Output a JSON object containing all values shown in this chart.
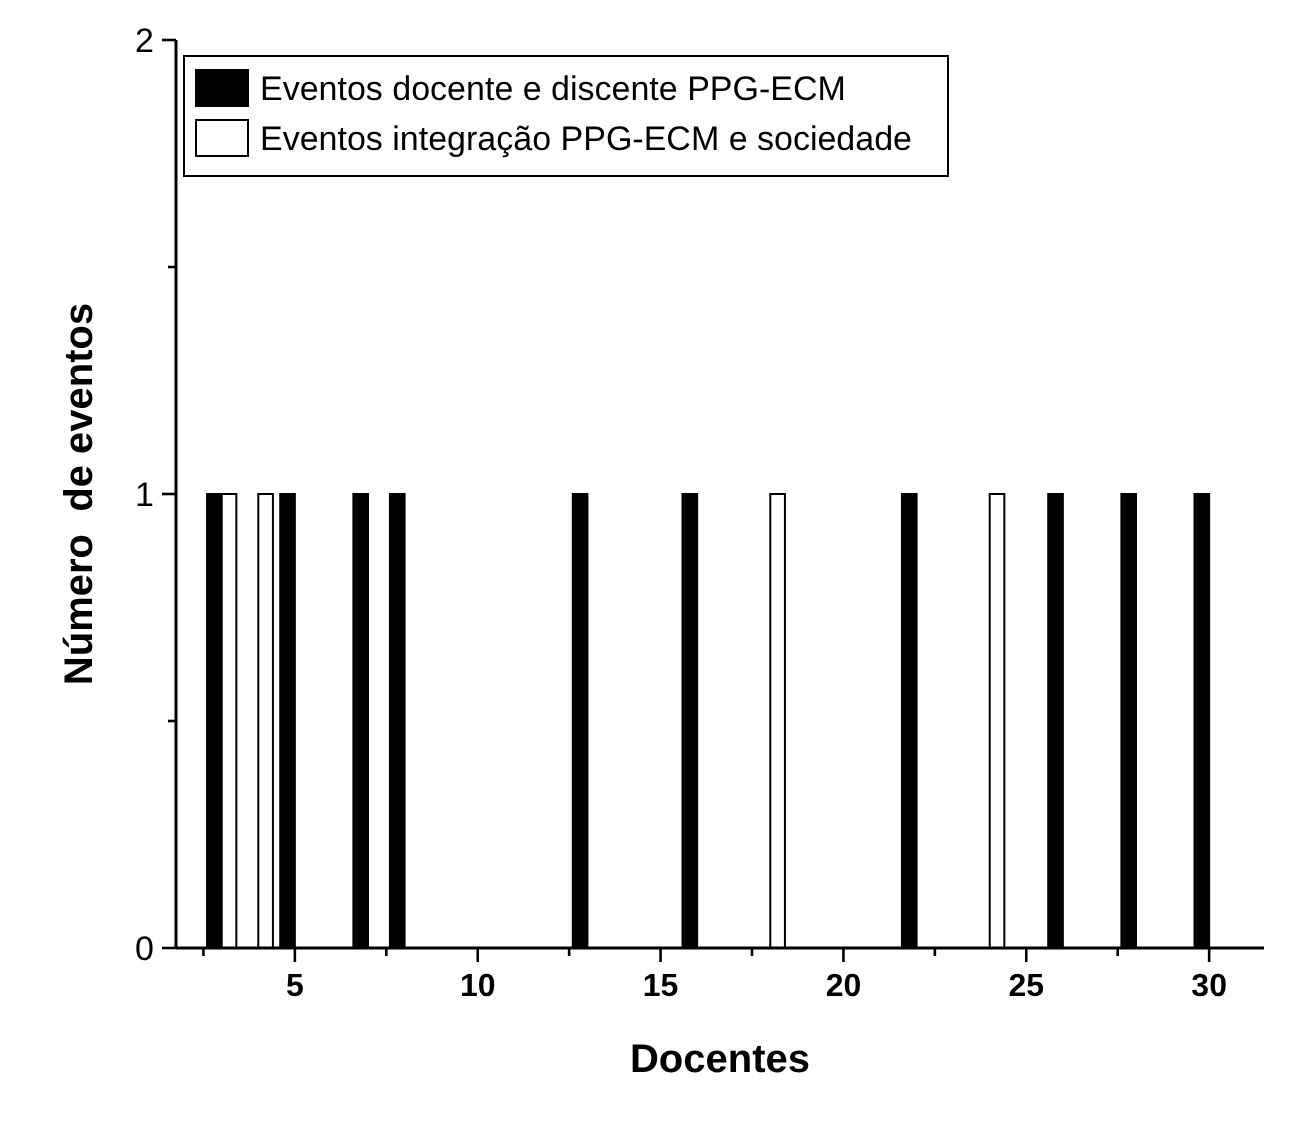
{
  "chart_data": {
    "type": "bar",
    "xlabel": "Docentes",
    "ylabel": "Número  de eventos",
    "xlim": [
      1.75,
      31.5
    ],
    "xticks": [
      {
        "value": 2.5,
        "label": null
      },
      5,
      {
        "value": 7.5,
        "label": null
      },
      10,
      {
        "value": 12.5,
        "label": null
      },
      15,
      {
        "value": 17.5,
        "label": null
      },
      20,
      {
        "value": 22.5,
        "label": null
      },
      25,
      {
        "value": 27.5,
        "label": null
      },
      30
    ],
    "ylim": [
      0,
      2
    ],
    "yticks": [
      0,
      {
        "value": 0.5,
        "label": null
      },
      1,
      {
        "value": 1.5,
        "label": null
      },
      2
    ],
    "legend": "top left",
    "x": [
      3,
      4,
      5,
      7,
      8,
      13,
      16,
      18,
      22,
      24,
      26,
      28,
      30
    ],
    "series": [
      {
        "name": "Eventos docente e discente PPG-ECM",
        "color": "#000000",
        "values": [
          1,
          null,
          1,
          1,
          1,
          1,
          1,
          null,
          1,
          null,
          1,
          1,
          1
        ]
      },
      {
        "name": "Eventos integração PPG-ECM e sociedade",
        "color": "#ffffff",
        "values": [
          1,
          1,
          null,
          null,
          null,
          null,
          null,
          1,
          null,
          1,
          null,
          null,
          null
        ]
      }
    ]
  }
}
